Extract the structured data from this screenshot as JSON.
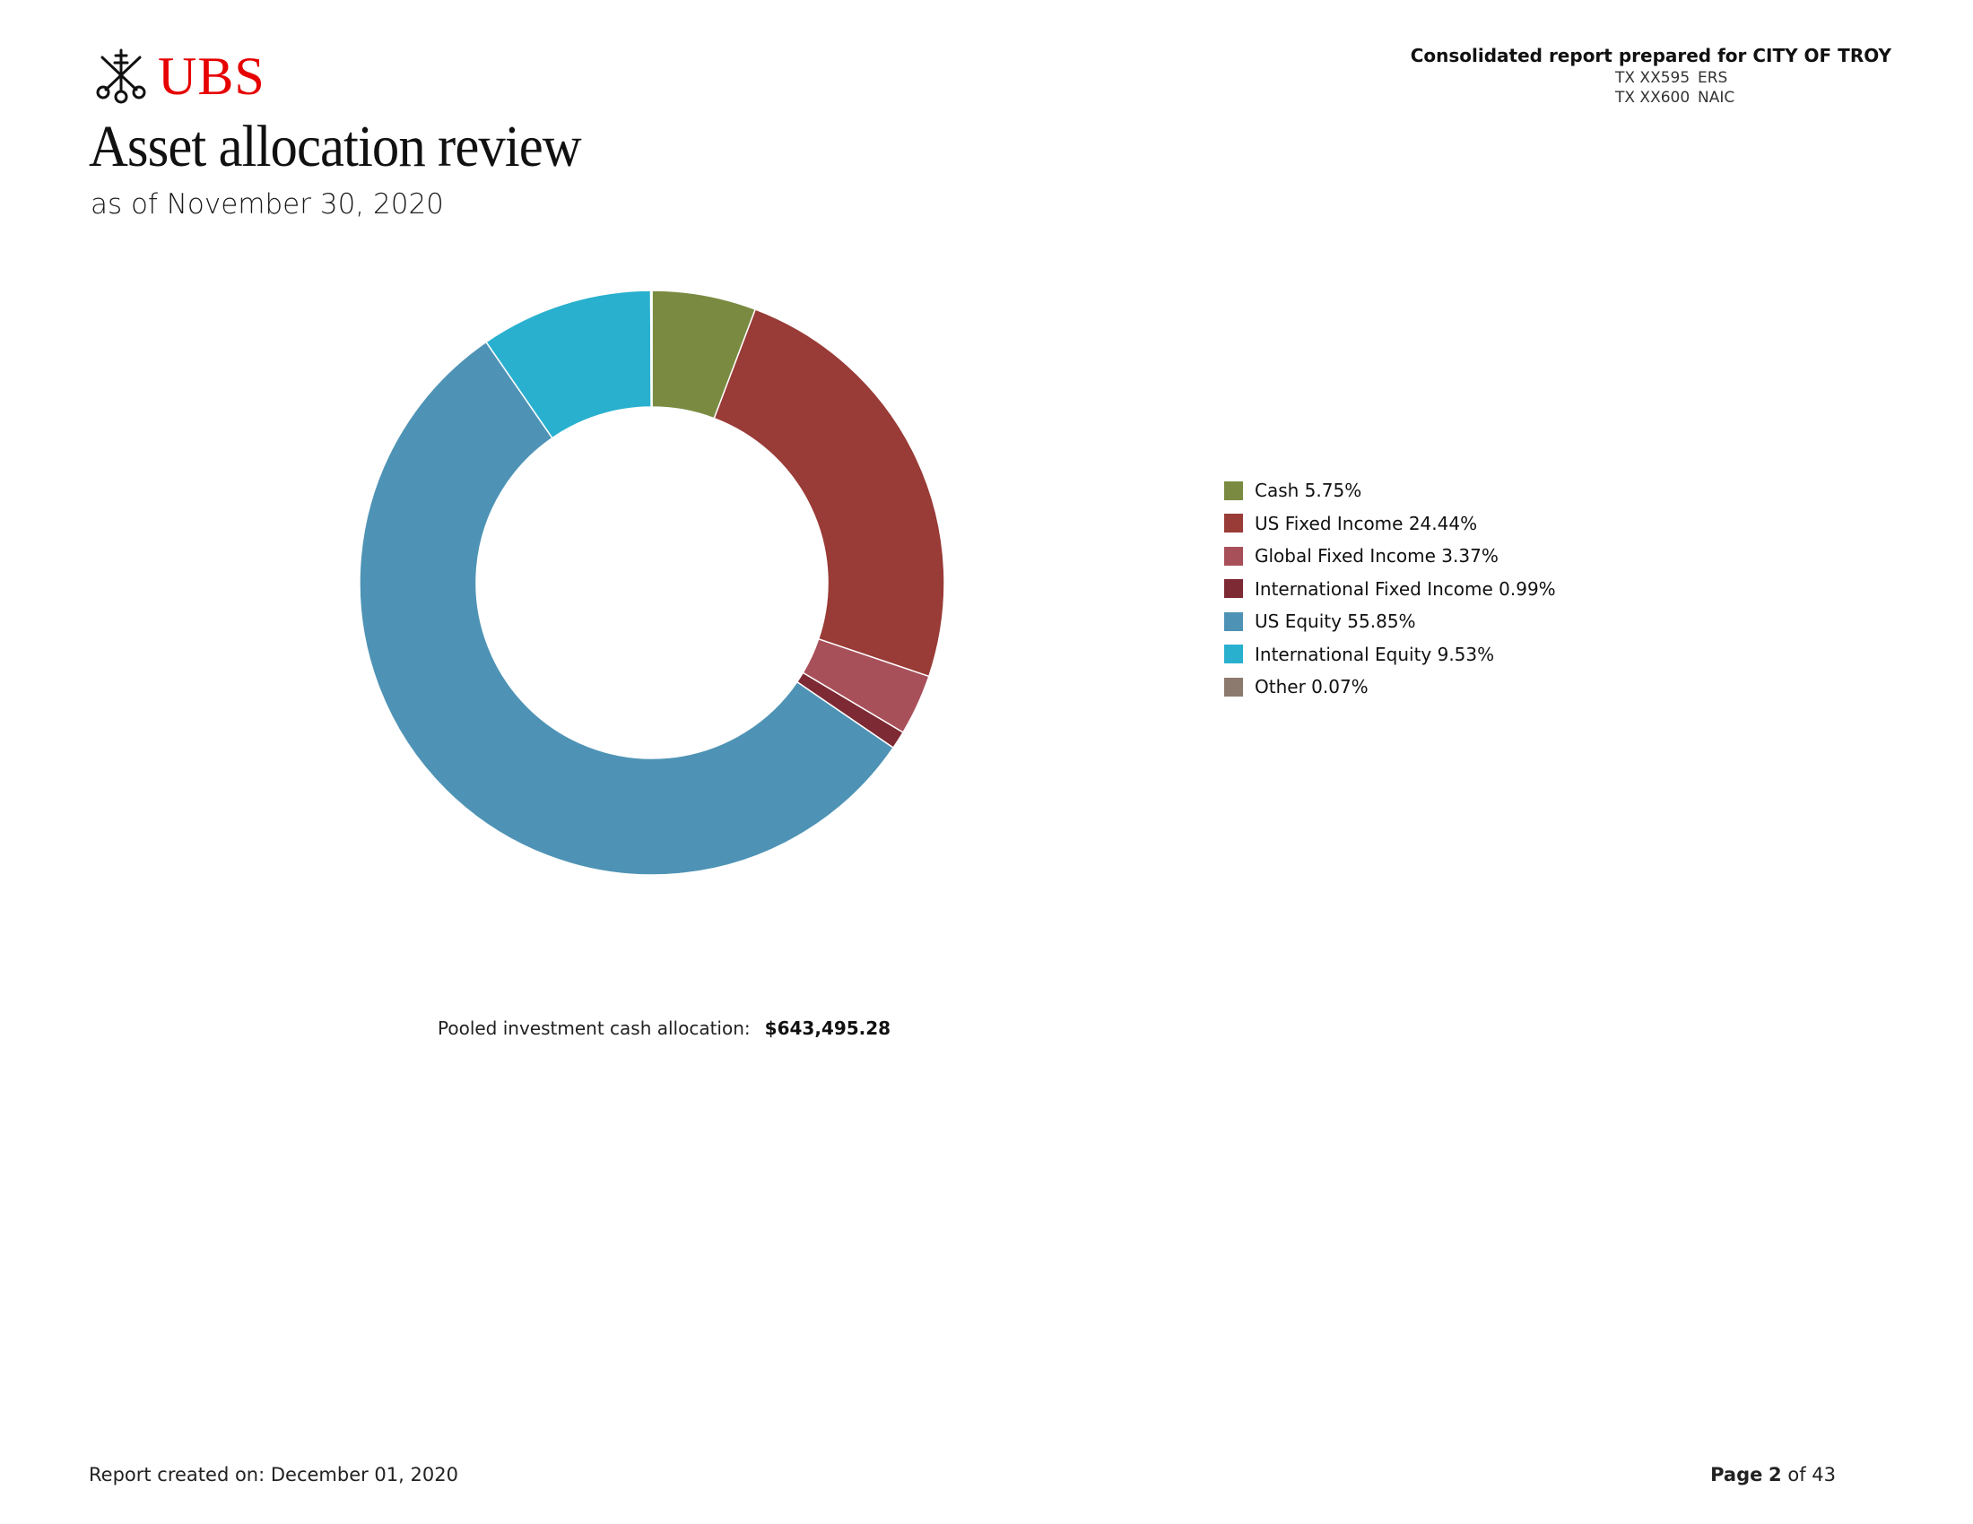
{
  "brand": {
    "logo_text": "UBS",
    "logo_color": "#e60000"
  },
  "header": {
    "title": "Asset allocation review",
    "subtitle": "as of November 30, 2020",
    "prepared_for": "Consolidated report prepared for CITY OF TROY",
    "accounts": [
      {
        "code": "TX XX595",
        "name": "ERS"
      },
      {
        "code": "TX XX600",
        "name": "NAIC"
      }
    ]
  },
  "chart_data": {
    "type": "pie",
    "style": "donut",
    "title": "",
    "categories": [
      "Cash",
      "US Fixed Income",
      "Global Fixed Income",
      "International Fixed Income",
      "US Equity",
      "International Equity",
      "Other"
    ],
    "values": [
      5.75,
      24.44,
      3.37,
      0.99,
      55.85,
      9.53,
      0.07
    ],
    "unit": "%",
    "colors": [
      "#7a8b41",
      "#993b36",
      "#a8505a",
      "#7d2a34",
      "#4e93b5",
      "#29b0cf",
      "#8c7a6e"
    ],
    "legend_labels": [
      "Cash 5.75%",
      "US Fixed Income 24.44%",
      "Global Fixed Income 3.37%",
      "International Fixed Income 0.99%",
      "US Equity 55.85%",
      "International Equity 9.53%",
      "Other 0.07%"
    ],
    "legend_position": "right"
  },
  "pooled": {
    "label": "Pooled investment cash allocation:",
    "amount": "$643,495.28"
  },
  "footer": {
    "created": "Report created on: December 01, 2020",
    "page_label": "Page",
    "page_number": "2",
    "page_of": "of 43"
  }
}
